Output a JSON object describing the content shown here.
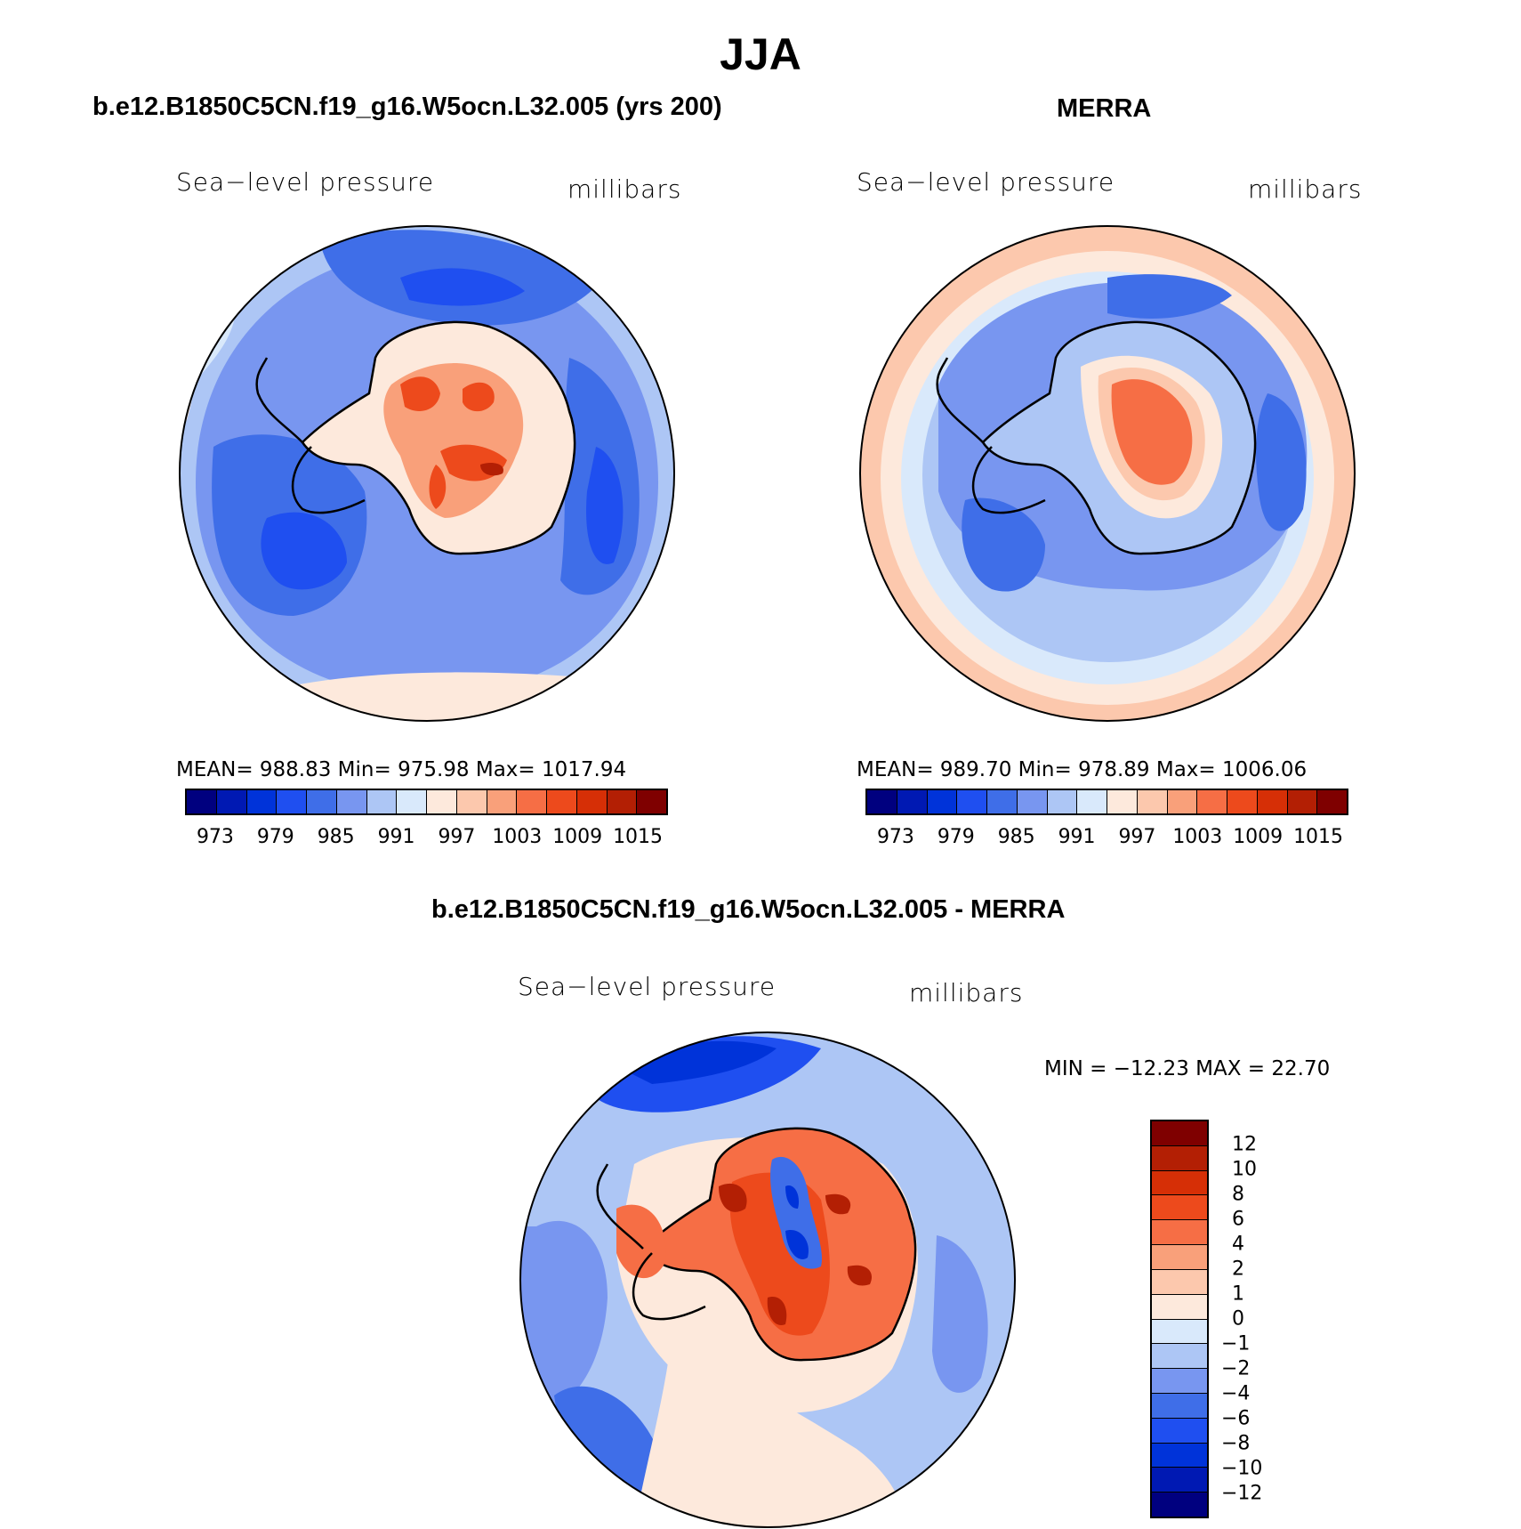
{
  "figure": {
    "title": "JJA"
  },
  "panels": {
    "model": {
      "heading": "b.e12.B1850C5CN.f19_g16.W5ocn.L32.005 (yrs 200)",
      "variable": "Sea−level pressure",
      "units": "millibars",
      "stats": "MEAN=  988.83    Min=  975.98    Max=  1017.94",
      "colorbar_ticks": [
        "973",
        "979",
        "985",
        "991",
        "997",
        "1003",
        "1009",
        "1015"
      ]
    },
    "obs": {
      "heading": "MERRA",
      "variable": "Sea−level pressure",
      "units": "millibars",
      "stats": "MEAN=  989.70    Min=  978.89    Max=  1006.06",
      "colorbar_ticks": [
        "973",
        "979",
        "985",
        "991",
        "997",
        "1003",
        "1009",
        "1015"
      ]
    },
    "diff": {
      "heading": "b.e12.B1850C5CN.f19_g16.W5ocn.L32.005 - MERRA",
      "variable": "Sea−level pressure",
      "units": "millibars",
      "stats": "MIN =  −12.23  MAX =    22.70",
      "colorbar_ticks": [
        "12",
        "10",
        "8",
        "6",
        "4",
        "2",
        "1",
        "0",
        "−1",
        "−2",
        "−4",
        "−6",
        "−8",
        "−10",
        "−12"
      ]
    }
  },
  "palettes": {
    "field": [
      "#00007f",
      "#0019b3",
      "#0033d9",
      "#1f4ff0",
      "#3f6ee8",
      "#7896f0",
      "#adc6f5",
      "#d9e9fb",
      "#fde9dc",
      "#fcc8ad",
      "#f9a07a",
      "#f66e45",
      "#ed4a1c",
      "#d62f06",
      "#b31f04",
      "#7f0000"
    ],
    "diff": [
      "#7f0000",
      "#b31f04",
      "#d62f06",
      "#ed4a1c",
      "#f66e45",
      "#f9a07a",
      "#fcc8ad",
      "#fde9dc",
      "#d9e9fb",
      "#adc6f5",
      "#7896f0",
      "#3f6ee8",
      "#1f4ff0",
      "#0033d9",
      "#0019b3",
      "#00007f"
    ]
  },
  "chart_data": [
    {
      "type": "heatmap",
      "title": "b.e12.B1850C5CN.f19_g16.W5ocn.L32.005 (yrs 200)",
      "variable": "Sea-level pressure",
      "units": "millibars",
      "projection": "south polar stereographic",
      "levels": [
        973,
        976,
        979,
        982,
        985,
        988,
        991,
        994,
        997,
        1000,
        1003,
        1006,
        1009,
        1012,
        1015
      ],
      "mean": 988.83,
      "min": 975.98,
      "max": 1017.94
    },
    {
      "type": "heatmap",
      "title": "MERRA",
      "variable": "Sea-level pressure",
      "units": "millibars",
      "projection": "south polar stereographic",
      "levels": [
        973,
        976,
        979,
        982,
        985,
        988,
        991,
        994,
        997,
        1000,
        1003,
        1006,
        1009,
        1012,
        1015
      ],
      "mean": 989.7,
      "min": 978.89,
      "max": 1006.06
    },
    {
      "type": "heatmap",
      "title": "b.e12.B1850C5CN.f19_g16.W5ocn.L32.005 - MERRA",
      "variable": "Sea-level pressure",
      "units": "millibars",
      "projection": "south polar stereographic",
      "levels": [
        -12,
        -10,
        -8,
        -6,
        -4,
        -2,
        -1,
        0,
        1,
        2,
        4,
        6,
        8,
        10,
        12
      ],
      "min": -12.23,
      "max": 22.7
    }
  ]
}
